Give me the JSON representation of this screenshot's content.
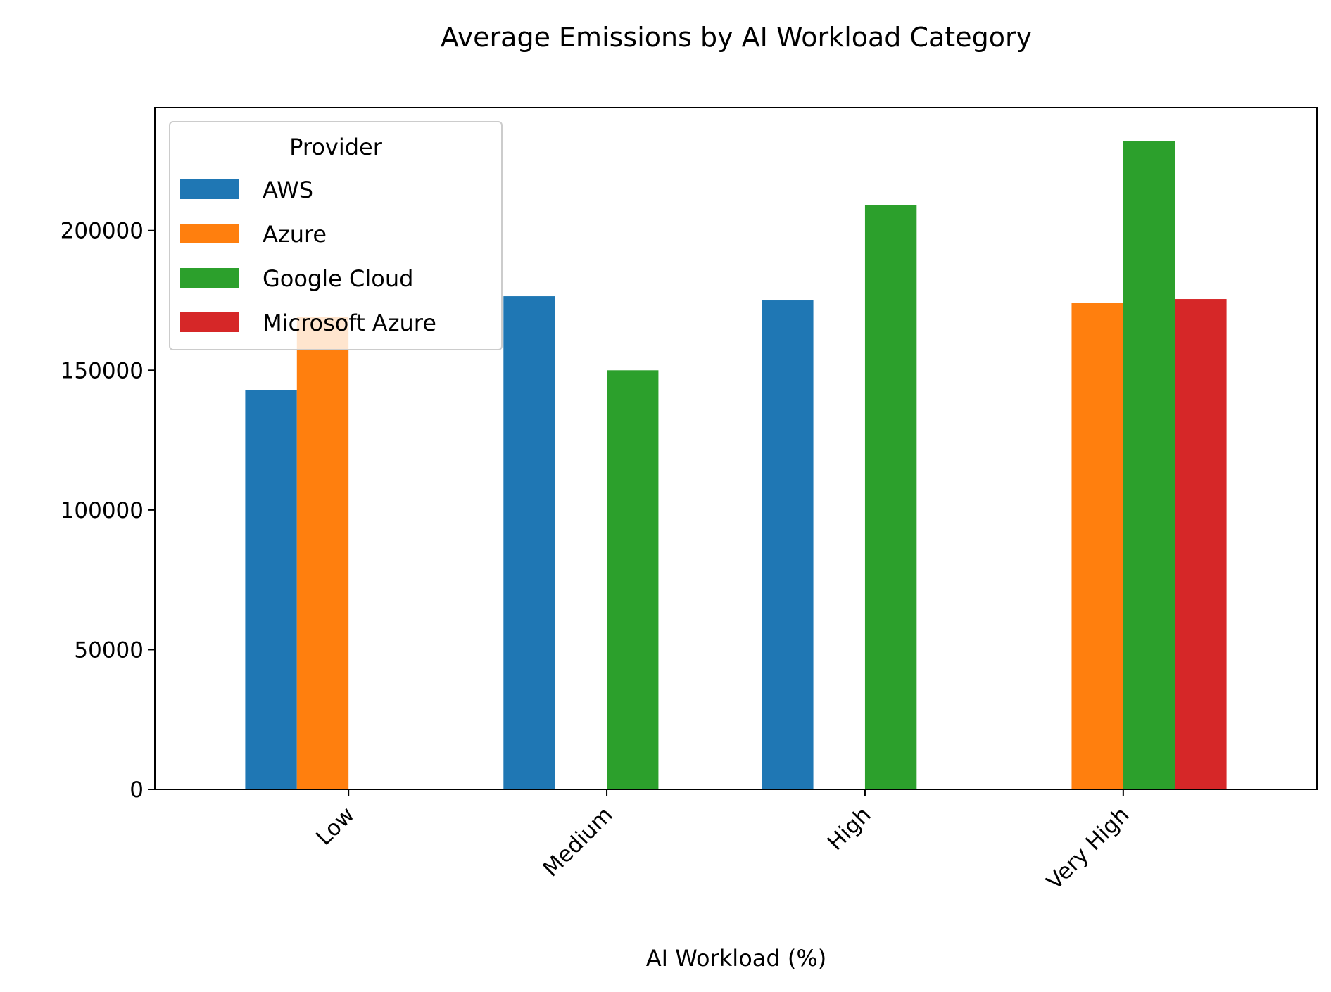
{
  "chart_data": {
    "type": "bar",
    "title": "Average Emissions by AI Workload Category",
    "xlabel": "AI Workload (%)",
    "ylabel": "",
    "categories": [
      "Low",
      "Medium",
      "High",
      "Very High"
    ],
    "series": [
      {
        "name": "AWS",
        "color": "#1f77b4",
        "values": [
          143000,
          176500,
          175000,
          null
        ]
      },
      {
        "name": "Azure",
        "color": "#ff7f0e",
        "values": [
          169000,
          null,
          null,
          174000
        ]
      },
      {
        "name": "Google Cloud",
        "color": "#2ca02c",
        "values": [
          null,
          150000,
          209000,
          232000
        ]
      },
      {
        "name": "Microsoft Azure",
        "color": "#d62728",
        "values": [
          null,
          null,
          null,
          175500
        ]
      }
    ],
    "ylim": [
      0,
      244000
    ],
    "yticks": [
      0,
      50000,
      100000,
      150000,
      200000
    ],
    "ytick_labels": [
      "0",
      "50000",
      "100000",
      "150000",
      "200000"
    ],
    "legend": {
      "title": "Provider",
      "placement": "upper-left"
    },
    "grid": false,
    "xtick_rotation": 45
  }
}
